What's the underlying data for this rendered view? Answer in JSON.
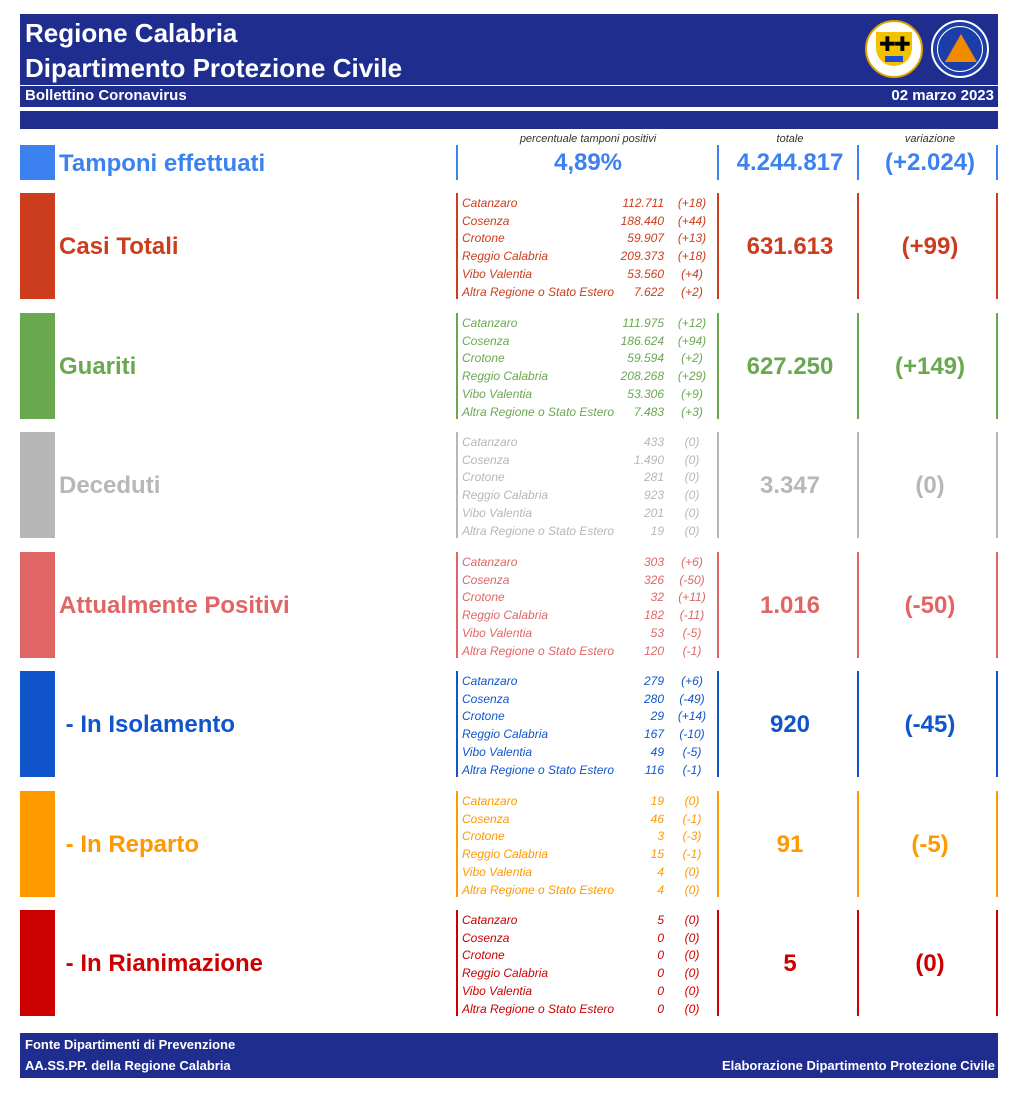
{
  "header": {
    "title_line1": "Regione Calabria",
    "title_line2": "Dipartimento Protezione Civile",
    "subtitle": "Bollettino Coronavirus",
    "date": "02 marzo 2023",
    "logo_left": "regione-calabria-coat-of-arms",
    "logo_right": "protezione-civile-logo"
  },
  "columns": {
    "positivity": "percentuale tamponi positivi",
    "total": "totale",
    "change": "variazione"
  },
  "tamponi": {
    "label": "Tamponi effettuati",
    "positivity": "4,89%",
    "total": "4.244.817",
    "change": "(+2.024)",
    "color": "#3b82f0"
  },
  "sections": [
    {
      "key": "casi-totali",
      "label": "Casi Totali",
      "color": "#cc3d1e",
      "total": "631.613",
      "change": "(+99)",
      "rows": [
        {
          "province": "Catanzaro",
          "value": "112.711",
          "delta": "(+18)"
        },
        {
          "province": "Cosenza",
          "value": "188.440",
          "delta": "(+44)"
        },
        {
          "province": "Crotone",
          "value": "59.907",
          "delta": "(+13)"
        },
        {
          "province": "Reggio Calabria",
          "value": "209.373",
          "delta": "(+18)"
        },
        {
          "province": "Vibo Valentia",
          "value": "53.560",
          "delta": "(+4)"
        },
        {
          "province": "Altra Regione o Stato Estero",
          "value": "7.622",
          "delta": "(+2)"
        }
      ]
    },
    {
      "key": "guariti",
      "label": "Guariti",
      "color": "#6aa84f",
      "total": "627.250",
      "change": "(+149)",
      "rows": [
        {
          "province": "Catanzaro",
          "value": "111.975",
          "delta": "(+12)"
        },
        {
          "province": "Cosenza",
          "value": "186.624",
          "delta": "(+94)"
        },
        {
          "province": "Crotone",
          "value": "59.594",
          "delta": "(+2)"
        },
        {
          "province": "Reggio Calabria",
          "value": "208.268",
          "delta": "(+29)"
        },
        {
          "province": "Vibo Valentia",
          "value": "53.306",
          "delta": "(+9)"
        },
        {
          "province": "Altra Regione o Stato Estero",
          "value": "7.483",
          "delta": "(+3)"
        }
      ]
    },
    {
      "key": "deceduti",
      "label": "Deceduti",
      "color": "#b7b7b7",
      "total": "3.347",
      "change": "(0)",
      "rows": [
        {
          "province": "Catanzaro",
          "value": "433",
          "delta": "(0)"
        },
        {
          "province": "Cosenza",
          "value": "1.490",
          "delta": "(0)"
        },
        {
          "province": "Crotone",
          "value": "281",
          "delta": "(0)"
        },
        {
          "province": "Reggio Calabria",
          "value": "923",
          "delta": "(0)"
        },
        {
          "province": "Vibo Valentia",
          "value": "201",
          "delta": "(0)"
        },
        {
          "province": "Altra Regione o Stato Estero",
          "value": "19",
          "delta": "(0)"
        }
      ]
    },
    {
      "key": "attualmente-positivi",
      "label": "Attualmente Positivi",
      "color": "#e06666",
      "total": "1.016",
      "change": "(-50)",
      "rows": [
        {
          "province": "Catanzaro",
          "value": "303",
          "delta": "(+6)"
        },
        {
          "province": "Cosenza",
          "value": "326",
          "delta": "(-50)"
        },
        {
          "province": "Crotone",
          "value": "32",
          "delta": "(+11)"
        },
        {
          "province": "Reggio Calabria",
          "value": "182",
          "delta": "(-11)"
        },
        {
          "province": "Vibo Valentia",
          "value": "53",
          "delta": "(-5)"
        },
        {
          "province": "Altra Regione o Stato Estero",
          "value": "120",
          "delta": "(-1)"
        }
      ]
    },
    {
      "key": "in-isolamento",
      "label": " - In Isolamento",
      "color": "#1155cc",
      "total": "920",
      "change": "(-45)",
      "rows": [
        {
          "province": "Catanzaro",
          "value": "279",
          "delta": "(+6)"
        },
        {
          "province": "Cosenza",
          "value": "280",
          "delta": "(-49)"
        },
        {
          "province": "Crotone",
          "value": "29",
          "delta": "(+14)"
        },
        {
          "province": "Reggio Calabria",
          "value": "167",
          "delta": "(-10)"
        },
        {
          "province": "Vibo Valentia",
          "value": "49",
          "delta": "(-5)"
        },
        {
          "province": "Altra Regione o Stato Estero",
          "value": "116",
          "delta": "(-1)"
        }
      ]
    },
    {
      "key": "in-reparto",
      "label": " - In Reparto",
      "color": "#ff9900",
      "total": "91",
      "change": "(-5)",
      "rows": [
        {
          "province": "Catanzaro",
          "value": "19",
          "delta": "(0)"
        },
        {
          "province": "Cosenza",
          "value": "46",
          "delta": "(-1)"
        },
        {
          "province": "Crotone",
          "value": "3",
          "delta": "(-3)"
        },
        {
          "province": "Reggio Calabria",
          "value": "15",
          "delta": "(-1)"
        },
        {
          "province": "Vibo Valentia",
          "value": "4",
          "delta": "(0)"
        },
        {
          "province": "Altra Regione o Stato Estero",
          "value": "4",
          "delta": "(0)"
        }
      ]
    },
    {
      "key": "in-rianimazione",
      "label": " - In Rianimazione",
      "color": "#cc0000",
      "total": "5",
      "change": "(0)",
      "rows": [
        {
          "province": "Catanzaro",
          "value": "5",
          "delta": "(0)"
        },
        {
          "province": "Cosenza",
          "value": "0",
          "delta": "(0)"
        },
        {
          "province": "Crotone",
          "value": "0",
          "delta": "(0)"
        },
        {
          "province": "Reggio Calabria",
          "value": "0",
          "delta": "(0)"
        },
        {
          "province": "Vibo Valentia",
          "value": "0",
          "delta": "(0)"
        },
        {
          "province": "Altra Regione o Stato Estero",
          "value": "0",
          "delta": "(0)"
        }
      ]
    }
  ],
  "footer": {
    "source_line1": "Fonte Dipartimenti di Prevenzione",
    "source_line2": "AA.SS.PP.  della Regione Calabria",
    "credit": "Elaborazione Dipartimento Protezione Civile"
  }
}
